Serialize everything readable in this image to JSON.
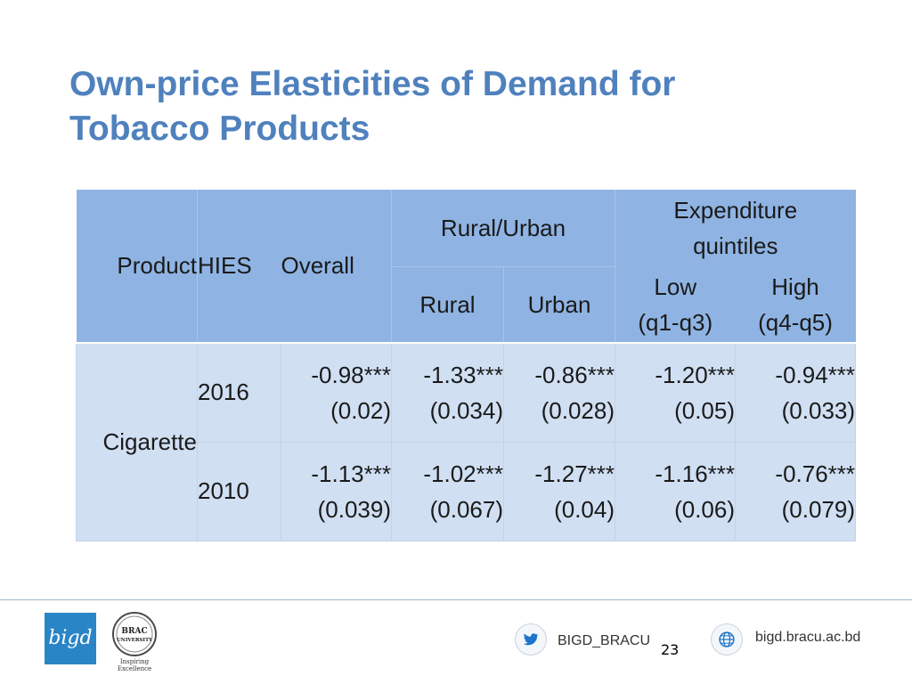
{
  "title": {
    "line1": "Own-price Elasticities of Demand for",
    "line2": "Tobacco Products"
  },
  "table": {
    "headers": {
      "product": "Product",
      "hies": "HIES",
      "overall": "Overall",
      "rural_urban": "Rural/Urban",
      "rural": "Rural",
      "urban": "Urban",
      "expenditure_line1": "Expenditure",
      "expenditure_line2": "quintiles",
      "low_line1": "Low",
      "low_line2": "(q1-q3)",
      "high_line1": "High",
      "high_line2": "(q4-q5)"
    },
    "product": "Cigarette",
    "rows": [
      {
        "year": "2016",
        "overall": {
          "est": "-0.98***",
          "se": "(0.02)"
        },
        "rural": {
          "est": "-1.33***",
          "se": "(0.034)"
        },
        "urban": {
          "est": "-0.86***",
          "se": "(0.028)"
        },
        "low": {
          "est": "-1.20***",
          "se": "(0.05)"
        },
        "high": {
          "est": "-0.94***",
          "se": "(0.033)"
        }
      },
      {
        "year": "2010",
        "overall": {
          "est": "-1.13***",
          "se": "(0.039)"
        },
        "rural": {
          "est": "-1.02***",
          "se": "(0.067)"
        },
        "urban": {
          "est": "-1.27***",
          "se": "(0.04)"
        },
        "low": {
          "est": "-1.16***",
          "se": "(0.06)"
        },
        "high": {
          "est": "-0.76***",
          "se": "(0.079)"
        }
      }
    ]
  },
  "footer": {
    "logo_bigd_text": "bigd",
    "brac_line1": "BRAC",
    "brac_line2": "UNIVERSITY",
    "brac_tagline": "Inspiring Excellence",
    "twitter_handle": "BIGD_BRACU",
    "website": "bigd.bracu.ac.bd",
    "page_number": "23",
    "twitter_icon": "twitter-icon",
    "globe_icon": "globe-icon"
  },
  "colors": {
    "title": "#4f81bd",
    "header_bg": "#8fb4e3",
    "body_bg": "#d0dff2"
  }
}
